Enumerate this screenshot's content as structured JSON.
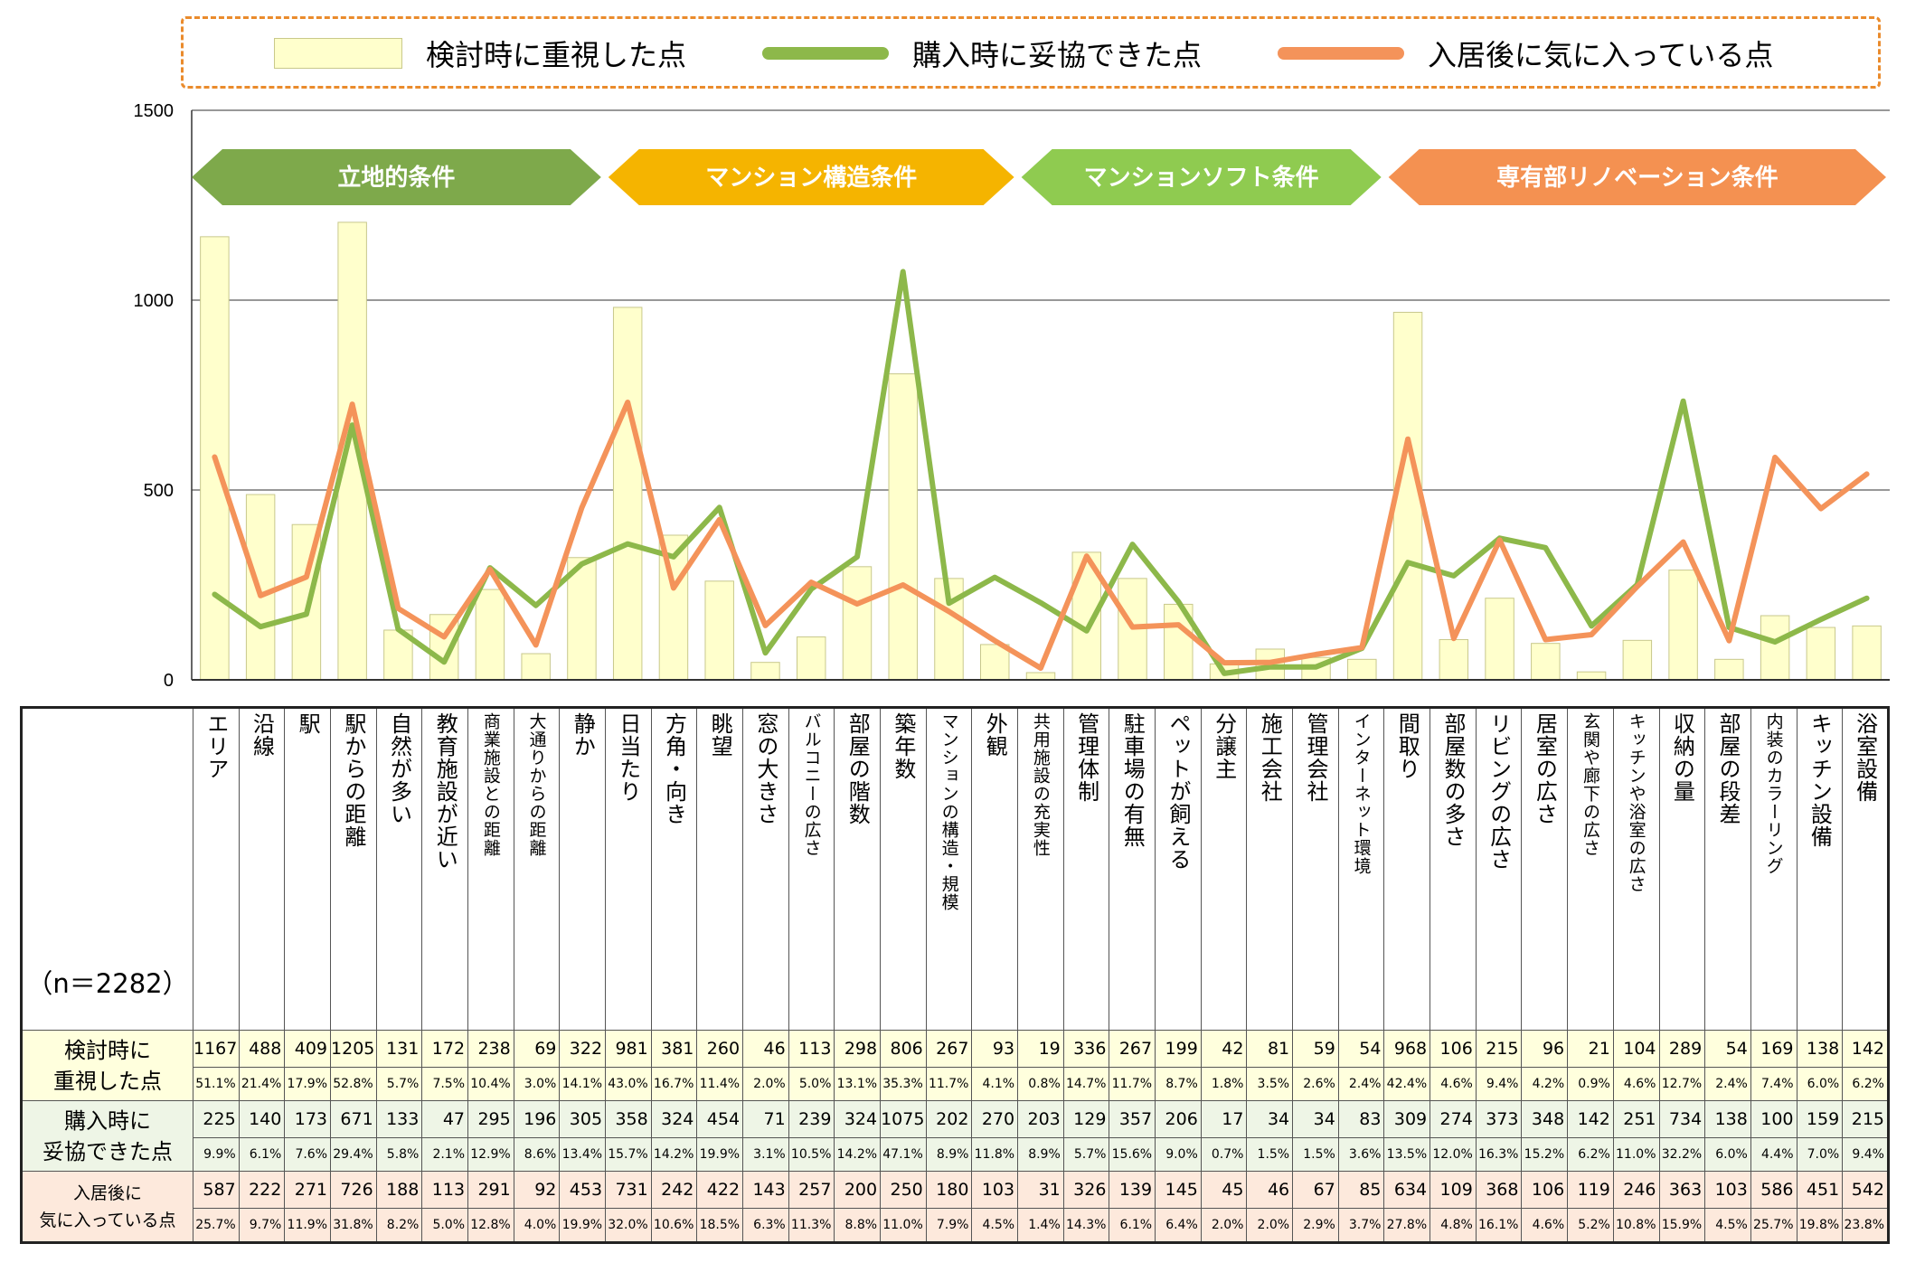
{
  "legend": {
    "items": [
      {
        "label": "検討時に重視した点",
        "kind": "bar",
        "color": "#ffffcc"
      },
      {
        "label": "購入時に妥協できた点",
        "kind": "line",
        "color": "#8db84a"
      },
      {
        "label": "入居後に気に入っている点",
        "kind": "line",
        "color": "#f4935a"
      }
    ]
  },
  "groups": [
    {
      "label": "立地的条件",
      "color": "#7ea94b",
      "start": 0,
      "end": 8
    },
    {
      "label": "マンション構造条件",
      "color": "#f5b400",
      "start": 9,
      "end": 17
    },
    {
      "label": "マンションソフト条件",
      "color": "#8fcb50",
      "start": 18,
      "end": 25
    },
    {
      "label": "専有部リノベーション条件",
      "color": "#f49151",
      "start": 26,
      "end": 36
    }
  ],
  "sample_label": "（n＝2282）",
  "row_labels": {
    "considered": "検討時に重視した点",
    "compromised": "購入時に妥協できた点",
    "liked": "入居後に気に入っている点"
  },
  "row_label_lines": {
    "considered": [
      "検討時に",
      "重視した点"
    ],
    "compromised": [
      "購入時に",
      "妥協できた点"
    ],
    "liked": [
      "入居後に",
      "気に入っている点"
    ]
  },
  "chart_data": {
    "type": "bar",
    "ylim": [
      0,
      1500
    ],
    "yticks": [
      "0",
      "500",
      "1000",
      "1500"
    ],
    "grid": true,
    "legend_position": "top",
    "categories": [
      "エリア",
      "沿線",
      "駅",
      "駅からの距離",
      "自然が多い",
      "教育施設が近い",
      "商業施設との距離",
      "大通りからの距離",
      "静か",
      "日当たり",
      "方角・向き",
      "眺望",
      "窓の大きさ",
      "バルコニーの広さ",
      "部屋の階数",
      "築年数",
      "マンションの構造・規模",
      "外観",
      "共用施設の充実性",
      "管理体制",
      "駐車場の有無",
      "ペットが飼える",
      "分譲主",
      "施工会社",
      "管理会社",
      "インターネット環境",
      "間取り",
      "部屋数の多さ",
      "リビングの広さ",
      "居室の広さ",
      "玄関や廊下の広さ",
      "キッチンや浴室の広さ",
      "収納の量",
      "部屋の段差",
      "内装のカラーリング",
      "キッチン設備",
      "浴室設備"
    ],
    "series": [
      {
        "name": "検討時に重視した点",
        "type": "bar",
        "color": "#ffffcc",
        "values": [
          1167,
          488,
          409,
          1205,
          131,
          172,
          238,
          69,
          322,
          981,
          381,
          260,
          46,
          113,
          298,
          806,
          267,
          93,
          19,
          336,
          267,
          199,
          42,
          81,
          59,
          54,
          968,
          106,
          215,
          96,
          21,
          104,
          289,
          54,
          169,
          138,
          142
        ],
        "percents": [
          "51.1%",
          "21.4%",
          "17.9%",
          "52.8%",
          "5.7%",
          "7.5%",
          "10.4%",
          "3.0%",
          "14.1%",
          "43.0%",
          "16.7%",
          "11.4%",
          "2.0%",
          "5.0%",
          "13.1%",
          "35.3%",
          "11.7%",
          "4.1%",
          "0.8%",
          "14.7%",
          "11.7%",
          "8.7%",
          "1.8%",
          "3.5%",
          "2.6%",
          "2.4%",
          "42.4%",
          "4.6%",
          "9.4%",
          "4.2%",
          "0.9%",
          "4.6%",
          "12.7%",
          "2.4%",
          "7.4%",
          "6.0%",
          "6.2%"
        ]
      },
      {
        "name": "購入時に妥協できた点",
        "type": "line",
        "color": "#8db84a",
        "values": [
          225,
          140,
          173,
          671,
          133,
          47,
          295,
          196,
          305,
          358,
          324,
          454,
          71,
          239,
          324,
          1075,
          202,
          270,
          203,
          129,
          357,
          206,
          17,
          34,
          34,
          83,
          309,
          274,
          373,
          348,
          142,
          251,
          734,
          138,
          100,
          159,
          215
        ],
        "percents": [
          "9.9%",
          "6.1%",
          "7.6%",
          "29.4%",
          "5.8%",
          "2.1%",
          "12.9%",
          "8.6%",
          "13.4%",
          "15.7%",
          "14.2%",
          "19.9%",
          "3.1%",
          "10.5%",
          "14.2%",
          "47.1%",
          "8.9%",
          "11.8%",
          "8.9%",
          "5.7%",
          "15.6%",
          "9.0%",
          "0.7%",
          "1.5%",
          "1.5%",
          "3.6%",
          "13.5%",
          "12.0%",
          "16.3%",
          "15.2%",
          "6.2%",
          "11.0%",
          "32.2%",
          "6.0%",
          "4.4%",
          "7.0%",
          "9.4%"
        ]
      },
      {
        "name": "入居後に気に入っている点",
        "type": "line",
        "color": "#f4935a",
        "values": [
          587,
          222,
          271,
          726,
          188,
          113,
          291,
          92,
          453,
          731,
          242,
          422,
          143,
          257,
          200,
          250,
          180,
          103,
          31,
          326,
          139,
          145,
          45,
          46,
          67,
          85,
          634,
          109,
          368,
          106,
          119,
          246,
          363,
          103,
          586,
          451,
          542
        ],
        "percents": [
          "25.7%",
          "9.7%",
          "11.9%",
          "31.8%",
          "8.2%",
          "5.0%",
          "12.8%",
          "4.0%",
          "19.9%",
          "32.0%",
          "10.6%",
          "18.5%",
          "6.3%",
          "11.3%",
          "8.8%",
          "11.0%",
          "7.9%",
          "4.5%",
          "1.4%",
          "14.3%",
          "6.1%",
          "6.4%",
          "2.0%",
          "2.0%",
          "2.9%",
          "3.7%",
          "27.8%",
          "4.8%",
          "16.1%",
          "4.6%",
          "5.2%",
          "10.8%",
          "15.9%",
          "4.5%",
          "25.7%",
          "19.8%",
          "23.8%"
        ]
      }
    ]
  }
}
